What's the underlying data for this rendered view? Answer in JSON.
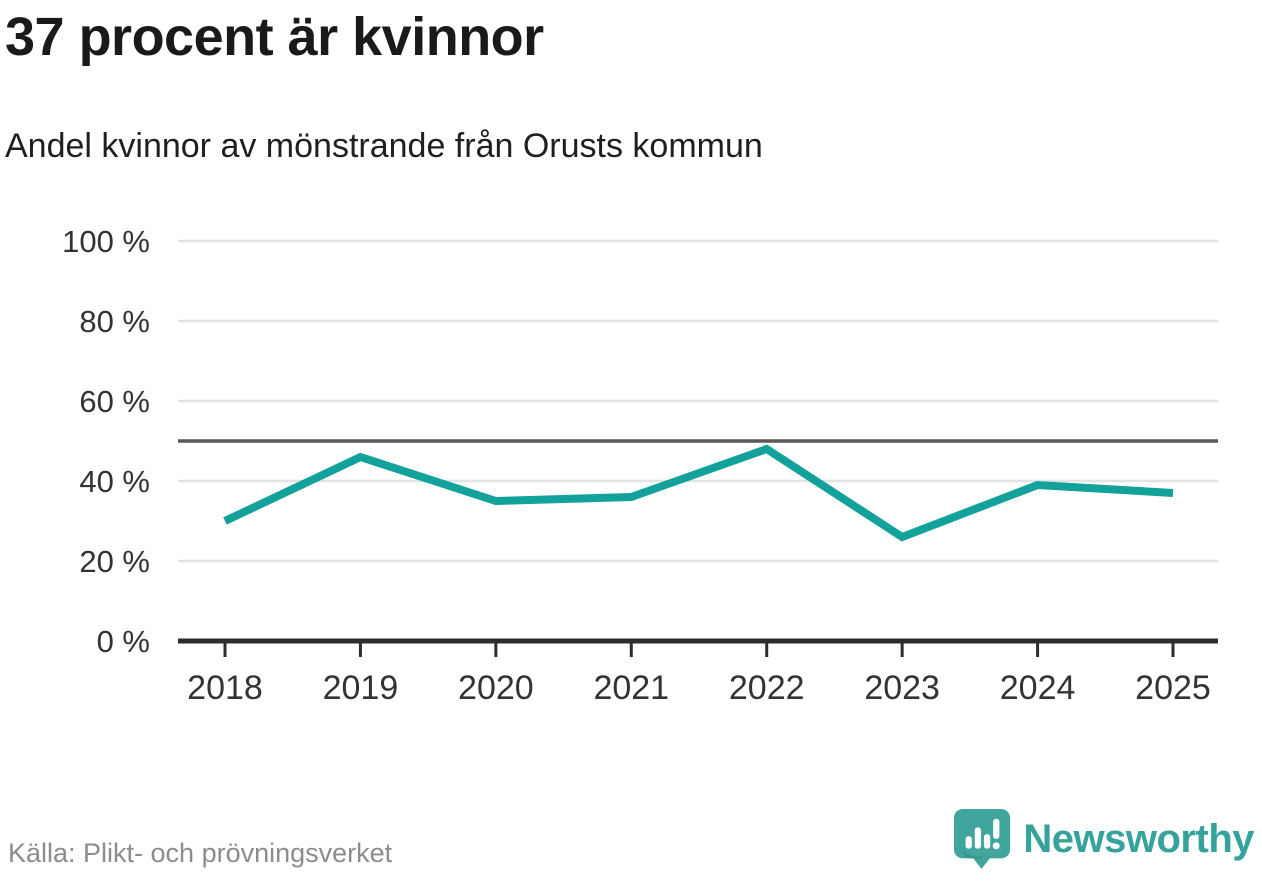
{
  "header": {
    "title": "37 procent är kvinnor",
    "subtitle": "Andel kvinnor av mönstrande från Orusts kommun"
  },
  "chart_data": {
    "type": "line",
    "title": "37 procent är kvinnor",
    "subtitle": "Andel kvinnor av mönstrande från Orusts kommun",
    "categories": [
      "2018",
      "2019",
      "2020",
      "2021",
      "2022",
      "2023",
      "2024",
      "2025"
    ],
    "series": [
      {
        "name": "Andel kvinnor av mönstrande",
        "values": [
          30,
          46,
          35,
          36,
          48,
          26,
          39,
          37
        ]
      }
    ],
    "xlabel": "",
    "ylabel": "",
    "ylim": [
      0,
      100
    ],
    "yticks": [
      0,
      20,
      40,
      60,
      80,
      100
    ],
    "ytick_suffix": " %",
    "reference_line": 50,
    "grid": true,
    "legend_position": "none",
    "colors": {
      "line": "#12a19b",
      "grid": "#e3e3e3",
      "reference_line": "#595959",
      "axis": "#2d2d2d",
      "tick_label": "#333333"
    }
  },
  "footer": {
    "source": "Källa: Plikt- och prövningsverket",
    "brand": "Newsworthy",
    "brand_color": "#35a39b",
    "logo_icon": "speech-bubble-bar-chart-icon"
  }
}
